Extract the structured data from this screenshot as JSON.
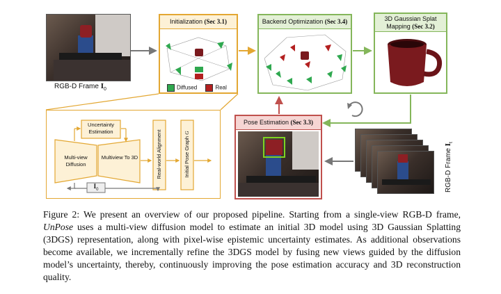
{
  "figure": {
    "rgbd_frame_label": "RGB-D Frame",
    "rgbd_frame_symbol": "I",
    "rgbd_frame_subscript": "0",
    "rgbd_frames_label": "RGB-D Frame",
    "rgbd_frames_subscript": "t",
    "init": {
      "title": "Initialization",
      "ref": "(Sec 3.1)",
      "legend": [
        {
          "label": "Diffused",
          "color": "#2fa84f"
        },
        {
          "label": "Real",
          "color": "#b32020"
        }
      ]
    },
    "backend": {
      "title": "Backend Optimization",
      "ref": "(Sec 3.4)"
    },
    "mapping": {
      "title_line1": "3D Gaussian Splat",
      "title_line2": "Mapping",
      "ref": "(Sec 3.2)"
    },
    "pose": {
      "title": "Pose Estimation",
      "ref": "(Sec 3.3)"
    },
    "detail": {
      "uncertainty": "Uncertainty Estimation",
      "multiview_diffusion": "Multi-view Diffusion",
      "multiview_to_3d": "Multiview To 3D",
      "real_world_alignment": "Real-world Alignment",
      "initial_pose_graph": "Initial Pose Graph",
      "pose_graph_symbol": "G",
      "i0_symbol": "I",
      "i0_sub": "0"
    },
    "colors": {
      "orange": "#e3a732",
      "orange_fill": "#fdf1d6",
      "green": "#84b65a",
      "green_fill": "#e3f0d6",
      "red": "#c0504d",
      "red_fill": "#f6d5d3",
      "arrow_gray": "#777777"
    }
  },
  "caption": {
    "prefix": "Figure 2: We present an overview of our proposed pipeline. Starting from a single-view RGB-D frame, ",
    "name": "UnPose",
    "suffix": " uses a multi-view diffusion model to estimate an initial 3D model using 3D Gaussian Splatting (3DGS) representation, along with pixel-wise epistemic uncertainty estimates. As additional observations become available, we incrementally refine the 3DGS model by fusing new views guided by the diffusion model’s uncertainty, thereby, continuously improving the pose estimation accuracy and 3D reconstruction quality."
  }
}
